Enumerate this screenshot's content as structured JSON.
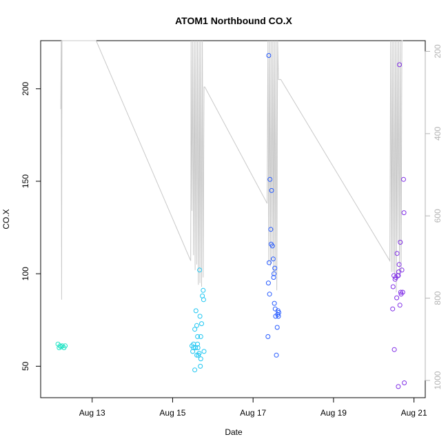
{
  "chart_data": {
    "type": "scatter",
    "title": "ATOM1 Northbound CO.X",
    "xlabel": "Date",
    "ylabel": "CO.X",
    "x_ticks": [
      {
        "label": "Aug 13",
        "value": 13
      },
      {
        "label": "Aug 15",
        "value": 15
      },
      {
        "label": "Aug 17",
        "value": 17
      },
      {
        "label": "Aug 19",
        "value": 19
      },
      {
        "label": "Aug 21",
        "value": 21
      }
    ],
    "xlim": [
      11.72,
      21.28
    ],
    "ylim": [
      33,
      226
    ],
    "y_ticks": [
      50,
      100,
      150,
      200
    ],
    "y2_ticks": [
      200,
      400,
      600,
      800,
      1000
    ],
    "y2lim": [
      1042,
      174
    ],
    "grid": false,
    "series": [
      {
        "color": "#1de3c4",
        "x": [
          12.15,
          12.18,
          12.2,
          12.23,
          12.26,
          12.3,
          12.33
        ],
        "y": [
          62,
          60,
          61,
          60.5,
          61,
          60,
          61
        ]
      },
      {
        "color": "#1cc6f2",
        "x": [
          15.48,
          15.5,
          15.52,
          15.55,
          15.57,
          15.58,
          15.6,
          15.62,
          15.63,
          15.64,
          15.66,
          15.67,
          15.68,
          15.69,
          15.7,
          15.7,
          15.72,
          15.74,
          15.76,
          15.77,
          15.78,
          15.55,
          15.52,
          15.6,
          15.62
        ],
        "y": [
          61,
          58,
          62,
          48,
          60,
          80,
          72,
          66,
          60,
          56,
          57,
          102,
          77,
          50,
          54,
          66,
          73,
          88,
          91,
          86,
          58,
          70,
          60,
          56,
          62
        ]
      },
      {
        "color": "#2459ff",
        "x": [
          17.37,
          17.38,
          17.39,
          17.4,
          17.41,
          17.42,
          17.44,
          17.46,
          17.48,
          17.5,
          17.51,
          17.52,
          17.53,
          17.54,
          17.55,
          17.56,
          17.58,
          17.6,
          17.61,
          17.62,
          17.63,
          17.64,
          17.45
        ],
        "y": [
          66,
          95,
          218,
          106,
          89,
          151,
          124,
          145,
          115,
          108,
          98,
          100,
          84,
          103,
          81,
          77,
          56,
          71,
          78,
          80,
          77,
          79,
          116
        ]
      },
      {
        "color": "#7f2ce6",
        "x": [
          20.47,
          20.48,
          20.5,
          20.51,
          20.53,
          20.57,
          20.58,
          20.6,
          20.61,
          20.62,
          20.63,
          20.64,
          20.65,
          20.66,
          20.67,
          20.7,
          20.72,
          20.74,
          20.75,
          20.76,
          20.61,
          20.55,
          20.68
        ],
        "y": [
          81,
          93,
          99,
          59,
          97,
          87,
          111,
          99,
          39,
          101,
          105,
          213,
          83,
          117,
          90,
          102,
          90,
          151,
          133,
          41,
          99,
          98,
          89
        ]
      }
    ],
    "trace_line": {
      "color": "#c8c8c8",
      "x": [
        12.22,
        12.23,
        12.24,
        12.25,
        12.26,
        12.27,
        12.3,
        12.32,
        13.1,
        15.45,
        15.46,
        15.48,
        15.5,
        15.52,
        15.54,
        15.56,
        15.58,
        15.6,
        15.62,
        15.64,
        15.66,
        15.68,
        15.7,
        15.72,
        15.74,
        15.76,
        15.78,
        15.8,
        17.35,
        17.37,
        17.39,
        17.41,
        17.43,
        17.45,
        17.47,
        17.49,
        17.51,
        17.53,
        17.55,
        17.57,
        17.59,
        17.61,
        17.63,
        17.65,
        17.67,
        17.69,
        20.4,
        20.42,
        20.44,
        20.46,
        20.48,
        20.5,
        20.52,
        20.54,
        20.56,
        20.58,
        20.6,
        20.62,
        20.64,
        20.66,
        20.68,
        20.7,
        20.72
      ],
      "y": [
        189,
        226,
        86,
        226,
        226,
        226,
        226,
        226,
        226,
        107,
        226,
        134,
        226,
        110,
        226,
        102,
        226,
        105,
        226,
        94,
        226,
        95,
        226,
        93,
        226,
        98,
        201,
        201,
        138,
        226,
        106,
        226,
        104,
        226,
        107,
        226,
        99,
        226,
        101,
        226,
        91,
        226,
        205,
        205,
        205,
        205,
        107,
        226,
        101,
        226,
        101,
        226,
        99,
        226,
        90,
        226,
        117,
        226,
        99,
        226,
        101,
        226,
        226
      ]
    }
  }
}
